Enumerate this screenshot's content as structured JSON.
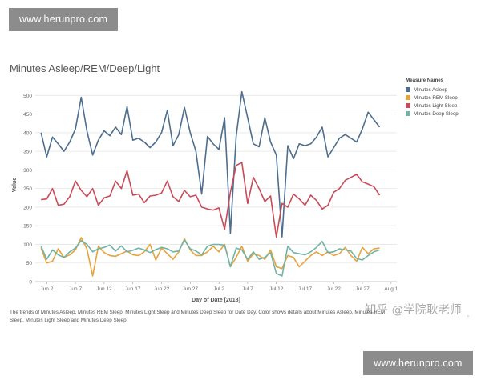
{
  "watermarks": {
    "top": "www.herunpro.com",
    "bottom": "www.herunpro.com",
    "zh": "知乎 @学院耿老师",
    "corner": "◦"
  },
  "caption": "The trends of Minutes Asleep, Minutes REM Sleep, Minutes Light Sleep and Minutes Deep Sleep for Date Day. Color shows details about Minutes Asleep, Minutes REM Sleep, Minutes Light Sleep and Minutes Deep Sleep.",
  "chart_data": {
    "type": "line",
    "title": "Minutes Asleep/REM/Deep/Light",
    "xlabel": "Day of Date [2018]",
    "ylabel": "Value",
    "ylim": [
      0,
      520
    ],
    "yticks": [
      0,
      50,
      100,
      150,
      200,
      250,
      300,
      350,
      400,
      450,
      500
    ],
    "grid": true,
    "legend_title": "Measure Names",
    "legend_position": "top-right",
    "x_tick_labels": [
      "Jun 2",
      "Jun 7",
      "Jun 12",
      "Jun 17",
      "Jun 22",
      "Jun 27",
      "Jul 2",
      "Jul 7",
      "Jul 12",
      "Jul 17",
      "Jul 22",
      "Jul 27",
      "Aug 1"
    ],
    "x_tick_days": [
      2,
      7,
      12,
      17,
      22,
      27,
      32,
      37,
      42,
      47,
      52,
      57,
      62
    ],
    "x_days": [
      1,
      2,
      3,
      4,
      5,
      6,
      7,
      8,
      9,
      10,
      11,
      12,
      13,
      14,
      15,
      16,
      17,
      18,
      19,
      20,
      21,
      22,
      23,
      24,
      25,
      26,
      27,
      28,
      29,
      30,
      31,
      32,
      33,
      34,
      35,
      36,
      37,
      38,
      39,
      40,
      41,
      42,
      43,
      44,
      45,
      46,
      47,
      48,
      49,
      50,
      51,
      52,
      53,
      54,
      55,
      56,
      57,
      58,
      59,
      60
    ],
    "series": [
      {
        "name": "Minutes Asleep",
        "color": "#4e6e8e",
        "values": [
          400,
          335,
          388,
          370,
          350,
          375,
          410,
          495,
          405,
          340,
          380,
          405,
          392,
          415,
          395,
          470,
          380,
          385,
          375,
          360,
          375,
          400,
          460,
          365,
          395,
          468,
          400,
          350,
          235,
          390,
          370,
          355,
          440,
          130,
          390,
          510,
          440,
          370,
          362,
          440,
          375,
          340,
          120,
          365,
          330,
          370,
          365,
          370,
          388,
          415,
          335,
          360,
          385,
          395,
          385,
          375,
          410,
          455,
          435,
          415
        ]
      },
      {
        "name": "Minutes REM Sleep",
        "color": "#e6a33c",
        "values": [
          90,
          50,
          55,
          88,
          65,
          72,
          85,
          118,
          88,
          15,
          95,
          78,
          70,
          68,
          75,
          82,
          72,
          70,
          80,
          100,
          58,
          90,
          75,
          60,
          80,
          115,
          85,
          70,
          70,
          80,
          95,
          80,
          100,
          40,
          65,
          95,
          55,
          75,
          70,
          60,
          85,
          40,
          35,
          70,
          65,
          40,
          55,
          70,
          80,
          70,
          80,
          70,
          75,
          92,
          70,
          55,
          92,
          75,
          88,
          90
        ]
      },
      {
        "name": "Minutes Light Sleep",
        "color": "#c94a58",
        "values": [
          220,
          222,
          250,
          205,
          208,
          228,
          270,
          245,
          228,
          250,
          205,
          225,
          230,
          270,
          250,
          298,
          232,
          235,
          212,
          230,
          232,
          238,
          270,
          228,
          215,
          245,
          228,
          232,
          200,
          195,
          192,
          198,
          140,
          240,
          312,
          320,
          210,
          280,
          250,
          215,
          230,
          120,
          210,
          200,
          235,
          222,
          205,
          232,
          218,
          195,
          205,
          240,
          250,
          272,
          280,
          288,
          268,
          262,
          255,
          232
        ]
      },
      {
        "name": "Minutes Deep Sleep",
        "color": "#6fb4a6",
        "values": [
          95,
          60,
          85,
          72,
          65,
          80,
          90,
          110,
          100,
          80,
          88,
          92,
          98,
          82,
          96,
          80,
          84,
          90,
          85,
          78,
          86,
          92,
          88,
          80,
          82,
          112,
          88,
          82,
          72,
          95,
          100,
          100,
          98,
          40,
          90,
          85,
          60,
          80,
          60,
          65,
          78,
          22,
          15,
          95,
          78,
          75,
          72,
          80,
          92,
          108,
          78,
          80,
          88,
          85,
          82,
          62,
          58,
          70,
          80,
          85
        ]
      }
    ]
  }
}
